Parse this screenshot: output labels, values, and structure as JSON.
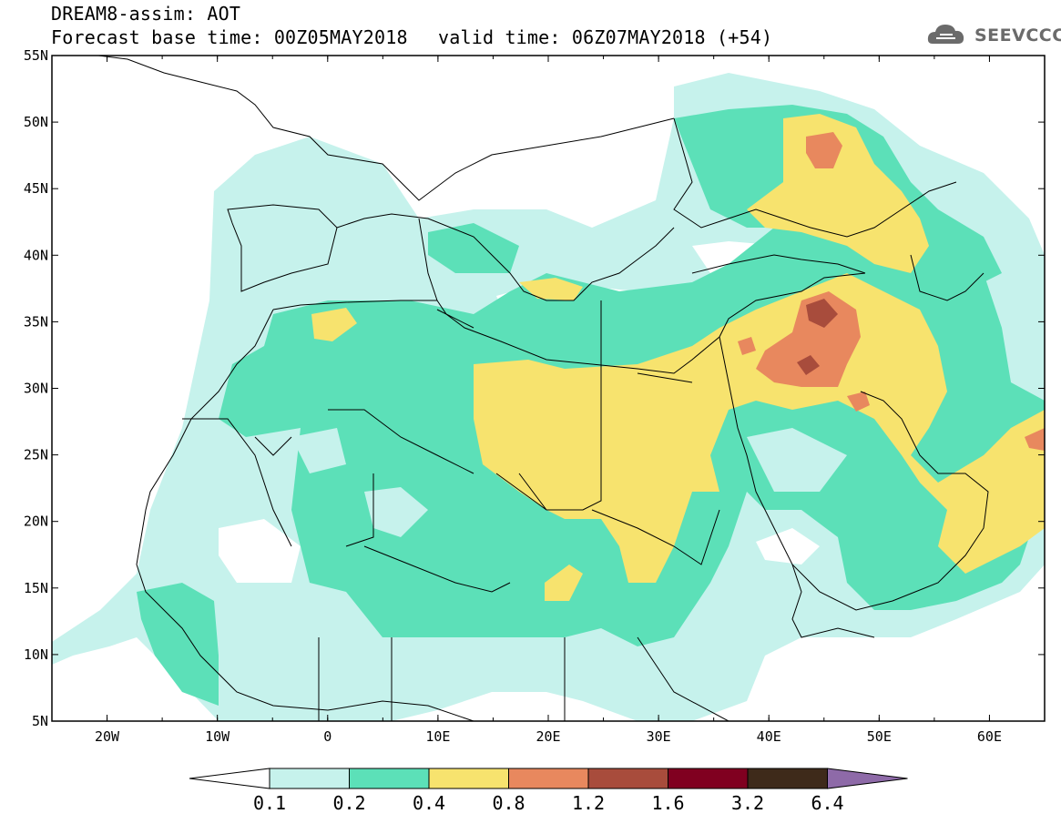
{
  "header": {
    "line1": "DREAM8-assim: AOT",
    "base_time": "Forecast base time: 00Z05MAY2018",
    "valid_time": "valid time: 06Z07MAY2018 (+54)"
  },
  "logo": {
    "text": "SEEVCCC",
    "icon": "cloud-icon",
    "color": "#6b6b6b"
  },
  "map": {
    "lon_range": [
      -25,
      65
    ],
    "lat_range": [
      5,
      55
    ],
    "lon_ticks": [
      "20W",
      "10W",
      "0",
      "10E",
      "20E",
      "30E",
      "40E",
      "50E",
      "60E"
    ],
    "lat_ticks": [
      "55N",
      "50N",
      "45N",
      "40N",
      "35N",
      "30N",
      "25N",
      "20N",
      "15N",
      "10N",
      "5N"
    ]
  },
  "colorbar": {
    "labels": [
      "0.1",
      "0.2",
      "0.4",
      "0.8",
      "1.2",
      "1.6",
      "3.2",
      "6.4"
    ],
    "colors": [
      "#c6f2ec",
      "#5ce0b8",
      "#f7e36e",
      "#e8885e",
      "#a84c3c",
      "#800020",
      "#3e2a1a",
      "#8e6aa8"
    ],
    "under_color": "#ffffff"
  }
}
